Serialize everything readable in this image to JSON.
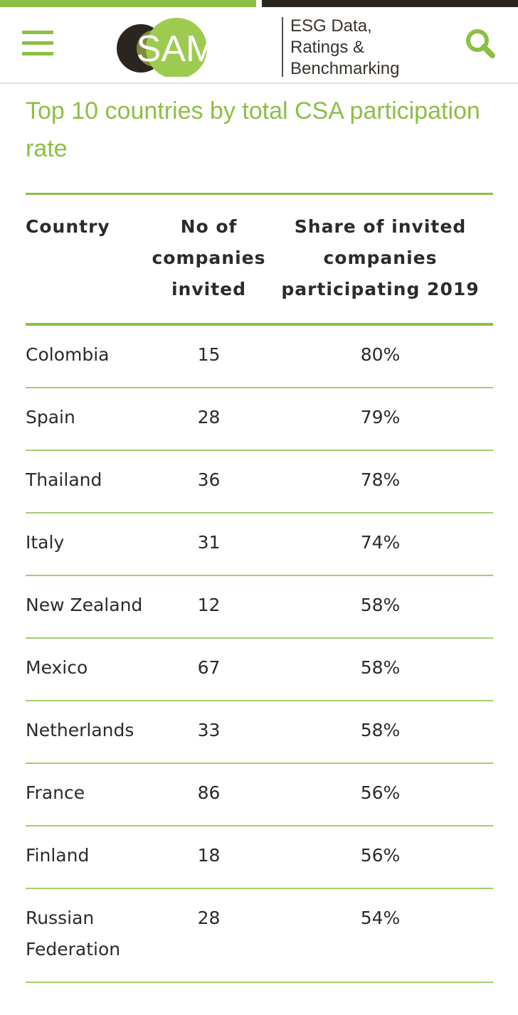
{
  "header": {
    "logo_text": "SAM",
    "tagline": [
      "ESG Data,",
      "Ratings &",
      "Benchmarking"
    ],
    "menu_icon": "hamburger-menu-icon",
    "search_icon": "search-icon"
  },
  "page": {
    "title": "Top 10 countries by total CSA participation rate"
  },
  "table": {
    "headers": {
      "country": "Country",
      "invited": [
        "No of",
        "companies",
        "invited"
      ],
      "share": [
        "Share of invited",
        "companies",
        "participating 2019"
      ]
    },
    "rows": [
      {
        "country": "Colombia",
        "invited": "15",
        "share": "80%"
      },
      {
        "country": "Spain",
        "invited": "28",
        "share": "79%"
      },
      {
        "country": "Thailand",
        "invited": "36",
        "share": "78%"
      },
      {
        "country": "Italy",
        "invited": "31",
        "share": "74%"
      },
      {
        "country": "New Zealand",
        "invited": "12",
        "share": "58%"
      },
      {
        "country": "Mexico",
        "invited": "67",
        "share": "58%"
      },
      {
        "country": "Netherlands",
        "invited": "33",
        "share": "58%"
      },
      {
        "country": "France",
        "invited": "86",
        "share": "56%"
      },
      {
        "country": "Finland",
        "invited": "18",
        "share": "56%"
      },
      {
        "country": "Russian Federation",
        "invited": "28",
        "share": "54%"
      }
    ]
  },
  "colors": {
    "accent_green": "#8cbf45",
    "logo_light_green": "#9ccb4f",
    "logo_olive": "#7f8a3c",
    "logo_dark": "#2a2520",
    "text": "#2b2b2b"
  }
}
